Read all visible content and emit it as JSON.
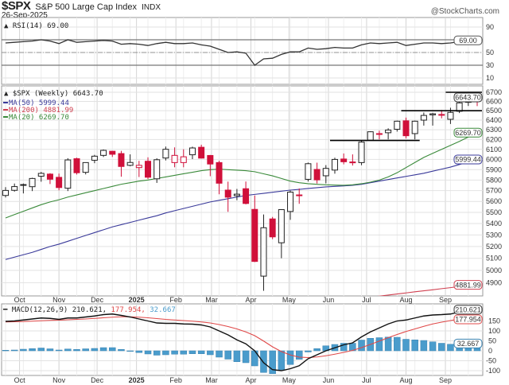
{
  "header": {
    "symbol": "$SPX",
    "name": "S&P 500 Large Cap Index",
    "exchange": "INDX",
    "date": "26-Sep-2025",
    "watermark": "@StockCharts.com"
  },
  "colors": {
    "up": "#222222",
    "down": "#d0103a",
    "ma50": "#3a3a9a",
    "ma200": "#d04050",
    "ma20": "#3a8a3a",
    "macd": "#111111",
    "signal": "#e04848",
    "histogram": "#4a9ccc",
    "rsi": "#333333"
  },
  "chart_data": [
    {
      "type": "line",
      "panel": "rsi",
      "title": "RSI(14) 69.00",
      "value_tag": "69.00",
      "ylim": [
        0,
        100
      ],
      "yticks": [
        90,
        50,
        30,
        10
      ],
      "reference_lines": [
        70,
        50,
        30
      ],
      "grid": true,
      "series": [
        {
          "name": "RSI(14)",
          "values": [
            65,
            66,
            67,
            68,
            70,
            68,
            64,
            70,
            66,
            67,
            68,
            69,
            68,
            63,
            64,
            63,
            61,
            64,
            66,
            64,
            64,
            65,
            62,
            60,
            55,
            50,
            51,
            49,
            30,
            40,
            41,
            47,
            51,
            51,
            57,
            55,
            56,
            58,
            57,
            57,
            62,
            65,
            64,
            65,
            66,
            61,
            63,
            65,
            65,
            64,
            65,
            67,
            69,
            69
          ]
        }
      ]
    },
    {
      "type": "candlestick",
      "panel": "price",
      "title": "$SPX (Weekly) 6643.70",
      "scale": "log",
      "ylim": [
        4790,
        6760
      ],
      "yticks": [
        4900,
        5000,
        5100,
        5200,
        5300,
        5400,
        5500,
        5600,
        5700,
        5800,
        5900,
        6000,
        6100,
        6200,
        6300,
        6400,
        6500,
        6600,
        6700
      ],
      "xticks": [
        {
          "date": "2024-10-01",
          "label": "Oct"
        },
        {
          "date": "2024-11-01",
          "label": "Nov"
        },
        {
          "date": "2024-12-01",
          "label": "Dec"
        },
        {
          "date": "2025-01-01",
          "label": "2025"
        },
        {
          "date": "2025-02-01",
          "label": "Feb"
        },
        {
          "date": "2025-03-01",
          "label": "Mar"
        },
        {
          "date": "2025-04-01",
          "label": "Apr"
        },
        {
          "date": "2025-05-01",
          "label": "May"
        },
        {
          "date": "2025-06-01",
          "label": "Jun"
        },
        {
          "date": "2025-07-01",
          "label": "Jul"
        },
        {
          "date": "2025-08-01",
          "label": "Aug"
        },
        {
          "date": "2025-09-01",
          "label": "Sep"
        }
      ],
      "grid": true,
      "x": [
        "2024-09-20",
        "2024-09-27",
        "2024-10-04",
        "2024-10-11",
        "2024-10-18",
        "2024-10-25",
        "2024-11-01",
        "2024-11-08",
        "2024-11-15",
        "2024-11-22",
        "2024-11-29",
        "2024-12-06",
        "2024-12-13",
        "2024-12-20",
        "2024-12-27",
        "2025-01-03",
        "2025-01-10",
        "2025-01-17",
        "2025-01-24",
        "2025-01-31",
        "2025-02-07",
        "2025-02-14",
        "2025-02-21",
        "2025-02-28",
        "2025-03-07",
        "2025-03-14",
        "2025-03-21",
        "2025-03-28",
        "2025-04-04",
        "2025-04-11",
        "2025-04-18",
        "2025-04-25",
        "2025-05-02",
        "2025-05-09",
        "2025-05-16",
        "2025-05-23",
        "2025-05-30",
        "2025-06-06",
        "2025-06-13",
        "2025-06-20",
        "2025-06-27",
        "2025-07-04",
        "2025-07-11",
        "2025-07-18",
        "2025-07-25",
        "2025-08-01",
        "2025-08-08",
        "2025-08-15",
        "2025-08-22",
        "2025-08-29",
        "2025-09-05",
        "2025-09-12",
        "2025-09-19",
        "2025-09-26"
      ],
      "ohlc": [
        [
          5655,
          5733,
          5636,
          5702
        ],
        [
          5703,
          5767,
          5691,
          5738
        ],
        [
          5757,
          5767,
          5674,
          5751
        ],
        [
          5737,
          5822,
          5696,
          5815
        ],
        [
          5837,
          5878,
          5784,
          5864
        ],
        [
          5857,
          5866,
          5762,
          5808
        ],
        [
          5826,
          5862,
          5703,
          5729
        ],
        [
          5723,
          6012,
          5696,
          5995
        ],
        [
          6007,
          6017,
          5853,
          5870
        ],
        [
          5874,
          5972,
          5854,
          5969
        ],
        [
          5992,
          6045,
          5963,
          6032
        ],
        [
          6040,
          6099,
          6024,
          6090
        ],
        [
          6081,
          6085,
          6024,
          6051
        ],
        [
          6058,
          6085,
          5832,
          5931
        ],
        [
          5942,
          6050,
          5933,
          5970
        ],
        [
          5920,
          5986,
          5829,
          5942
        ],
        [
          5982,
          6021,
          5809,
          5827
        ],
        [
          5812,
          6011,
          5773,
          5997
        ],
        [
          6014,
          6128,
          5990,
          6101
        ],
        [
          5969,
          6120,
          5923,
          6040
        ],
        [
          5969,
          6101,
          5923,
          6026
        ],
        [
          6046,
          6127,
          6003,
          6114
        ],
        [
          6121,
          6147,
          6009,
          6013
        ],
        [
          6039,
          6044,
          5837,
          5955
        ],
        [
          5969,
          5987,
          5666,
          5770
        ],
        [
          5705,
          5785,
          5505,
          5639
        ],
        [
          5653,
          5716,
          5611,
          5667
        ],
        [
          5718,
          5786,
          5573,
          5581
        ],
        [
          5527,
          5655,
          5069,
          5074
        ],
        [
          4953,
          5481,
          4835,
          5363
        ],
        [
          5441,
          5459,
          5263,
          5283
        ],
        [
          5232,
          5528,
          5101,
          5525
        ],
        [
          5508,
          5700,
          5433,
          5686
        ],
        [
          5656,
          5720,
          5578,
          5660
        ],
        [
          5807,
          5969,
          5786,
          5958
        ],
        [
          5902,
          5968,
          5767,
          5802
        ],
        [
          5841,
          5944,
          5768,
          5912
        ],
        [
          5896,
          6017,
          5861,
          6000
        ],
        [
          6004,
          6059,
          5952,
          5977
        ],
        [
          5975,
          6050,
          5940,
          5967
        ],
        [
          5969,
          6187,
          5943,
          6173
        ],
        [
          6193,
          6284,
          6188,
          6279
        ],
        [
          6255,
          6290,
          6201,
          6260
        ],
        [
          6269,
          6315,
          6201,
          6297
        ],
        [
          6305,
          6395,
          6281,
          6389
        ],
        [
          6393,
          6427,
          6212,
          6238
        ],
        [
          6260,
          6395,
          6201,
          6389
        ],
        [
          6400,
          6481,
          6343,
          6450
        ],
        [
          6456,
          6478,
          6343,
          6467
        ],
        [
          6457,
          6508,
          6419,
          6460
        ],
        [
          6409,
          6532,
          6360,
          6482
        ],
        [
          6494,
          6600,
          6475,
          6584
        ],
        [
          6590,
          6672,
          6551,
          6664
        ],
        [
          6661,
          6700,
          6550,
          6644
        ]
      ],
      "last_tag": "6643.70",
      "overlays": [
        {
          "name": "MA(50) 5999.44",
          "tag": "5999.44",
          "color_key": "ma50",
          "values": [
            5090,
            5110,
            5130,
            5150,
            5175,
            5200,
            5220,
            5245,
            5270,
            5295,
            5320,
            5345,
            5370,
            5390,
            5410,
            5430,
            5450,
            5470,
            5495,
            5515,
            5535,
            5555,
            5575,
            5595,
            5610,
            5625,
            5640,
            5655,
            5665,
            5675,
            5685,
            5695,
            5705,
            5712,
            5720,
            5728,
            5735,
            5740,
            5745,
            5750,
            5760,
            5775,
            5790,
            5805,
            5820,
            5835,
            5850,
            5865,
            5885,
            5905,
            5925,
            5950,
            5975,
            5999
          ]
        },
        {
          "name": "MA(200) 4881.99",
          "tag": "4881.99",
          "color_key": "ma200",
          "values": [
            4440,
            4448,
            4457,
            4465,
            4474,
            4482,
            4490,
            4499,
            4507,
            4516,
            4524,
            4533,
            4541,
            4549,
            4558,
            4566,
            4575,
            4583,
            4591,
            4600,
            4608,
            4617,
            4625,
            4633,
            4642,
            4650,
            4659,
            4667,
            4675,
            4684,
            4692,
            4701,
            4709,
            4717,
            4726,
            4734,
            4743,
            4751,
            4759,
            4768,
            4776,
            4785,
            4793,
            4801,
            4810,
            4818,
            4827,
            4835,
            4843,
            4852,
            4860,
            4869,
            4875,
            4882
          ]
        },
        {
          "name": "MA(20) 6269.70",
          "tag": "6269.70",
          "color_key": "ma20",
          "values": [
            5450,
            5480,
            5510,
            5540,
            5570,
            5595,
            5615,
            5640,
            5660,
            5680,
            5700,
            5720,
            5740,
            5760,
            5775,
            5790,
            5800,
            5815,
            5830,
            5845,
            5860,
            5875,
            5890,
            5900,
            5905,
            5900,
            5895,
            5890,
            5880,
            5860,
            5840,
            5815,
            5790,
            5775,
            5765,
            5760,
            5755,
            5752,
            5750,
            5755,
            5765,
            5780,
            5800,
            5830,
            5870,
            5920,
            5970,
            6020,
            6060,
            6100,
            6140,
            6180,
            6225,
            6270
          ]
        }
      ],
      "annotations": [
        {
          "type": "hline",
          "level": 6190,
          "from": "2025-06-06",
          "to": "2025-08-08"
        },
        {
          "type": "hline",
          "level": 6500,
          "from": "2025-08-01",
          "to": "2025-09-26"
        },
        {
          "type": "hline",
          "level": 6700,
          "from": "2025-09-05",
          "to": "2025-09-26"
        }
      ]
    },
    {
      "type": "line",
      "panel": "macd",
      "title": "MACD(12,26,9)",
      "legend_values": [
        "210.621",
        "177.954",
        "32.667"
      ],
      "ylim": [
        -120,
        215
      ],
      "yticks": [
        150,
        100,
        50,
        0,
        -50,
        -100
      ],
      "grid": true,
      "series": [
        {
          "name": "MACD",
          "tag": "210.621",
          "values": [
            148,
            150,
            155,
            160,
            165,
            163,
            158,
            165,
            165,
            170,
            175,
            182,
            185,
            178,
            170,
            160,
            150,
            140,
            138,
            138,
            135,
            134,
            130,
            120,
            100,
            80,
            55,
            35,
            0,
            -60,
            -95,
            -100,
            -90,
            -75,
            -40,
            -20,
            0,
            15,
            30,
            40,
            70,
            95,
            115,
            135,
            150,
            155,
            165,
            175,
            180,
            182,
            185,
            195,
            205,
            210.6
          ]
        },
        {
          "name": "Signal",
          "tag": "177.954",
          "values": [
            145,
            146,
            147,
            149,
            151,
            153,
            154,
            156,
            158,
            160,
            163,
            166,
            169,
            171,
            171,
            169,
            166,
            162,
            158,
            155,
            152,
            149,
            145,
            140,
            132,
            122,
            110,
            95,
            76,
            49,
            20,
            -4,
            -21,
            -32,
            -34,
            -31,
            -25,
            -17,
            -8,
            2,
            16,
            32,
            49,
            66,
            82,
            97,
            110,
            123,
            135,
            144,
            152,
            161,
            170,
            177.95
          ]
        },
        {
          "name": "Histogram",
          "tag": "32.667",
          "values": [
            3,
            4,
            8,
            11,
            14,
            10,
            4,
            9,
            7,
            10,
            12,
            16,
            16,
            7,
            -1,
            -9,
            -16,
            -22,
            -20,
            -17,
            -17,
            -15,
            -15,
            -20,
            -32,
            -42,
            -55,
            -60,
            -76,
            -109,
            -115,
            -96,
            -69,
            -43,
            -6,
            11,
            25,
            32,
            38,
            38,
            54,
            63,
            66,
            69,
            68,
            58,
            55,
            52,
            45,
            38,
            33,
            34,
            35,
            32.7
          ]
        }
      ]
    }
  ]
}
